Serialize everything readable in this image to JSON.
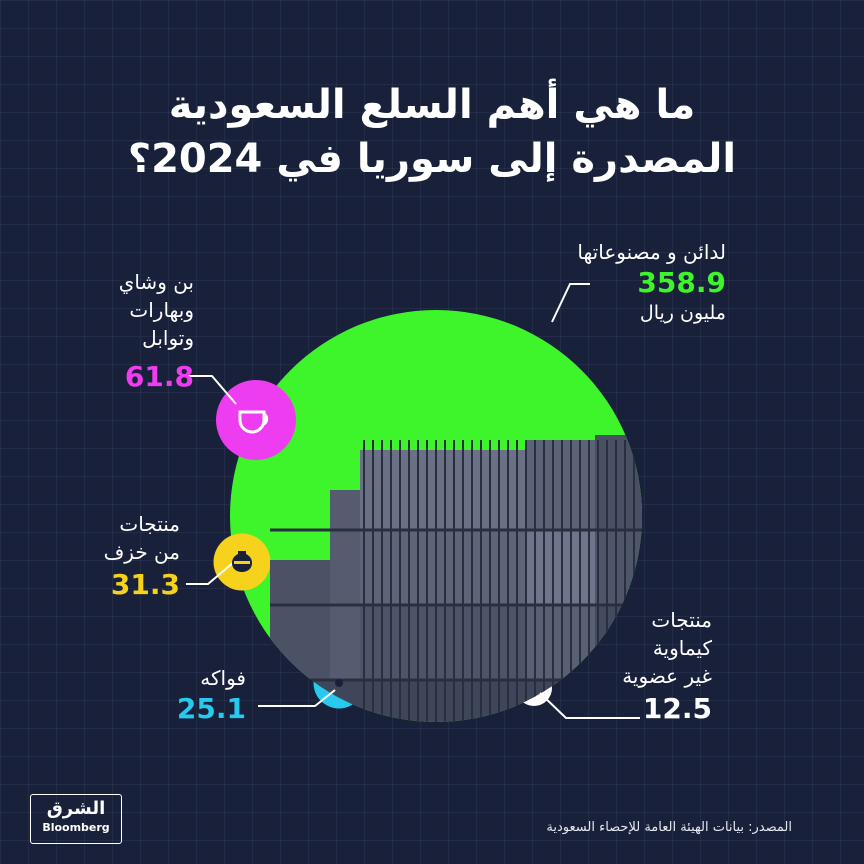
{
  "title": {
    "line1": "ما هي أهم السلع السعودية",
    "line2": "المصدرة إلى سوريا في 2024؟"
  },
  "colors": {
    "background": "#19213a",
    "green": "#3df52a",
    "magenta": "#ee3df0",
    "yellow": "#f6d21c",
    "cyan": "#27c9ee",
    "white": "#ffffff"
  },
  "chart_data": {
    "type": "pie",
    "unit": "مليون ريال",
    "slices": [
      {
        "label": "لدائن و مصنوعاتها",
        "value": 358.9,
        "color": "#3df52a",
        "icon": "none"
      },
      {
        "label_lines": [
          "بن وشاي",
          "وبهارات",
          "وتوابل"
        ],
        "value": 61.8,
        "color": "#ee3df0",
        "icon": "cup-icon"
      },
      {
        "label_lines": [
          "منتجات",
          "من خزف"
        ],
        "value": 31.3,
        "color": "#f6d21c",
        "icon": "vase-icon"
      },
      {
        "label": "فواكه",
        "value": 25.1,
        "color": "#27c9ee",
        "icon": "fruit-icon"
      },
      {
        "label_lines": [
          "منتجات",
          "كيماوية",
          "غير عضوية"
        ],
        "value": 12.5,
        "color": "#ffffff",
        "icon": "dot-icon"
      }
    ]
  },
  "labels": {
    "plastics": {
      "name": "لدائن و مصنوعاتها",
      "value": "358.9",
      "unit": "مليون ريال"
    },
    "coffee": {
      "line1": "بن وشاي",
      "line2": "وبهارات",
      "line3": "وتوابل",
      "value": "61.8"
    },
    "ceramic": {
      "line1": "منتجات",
      "line2": "من خزف",
      "value": "31.3"
    },
    "fruits": {
      "line1": "فواكه",
      "value": "25.1"
    },
    "chemicals": {
      "line1": "منتجات",
      "line2": "كيماوية",
      "line3": "غير عضوية",
      "value": "12.5"
    }
  },
  "source": "المصدر: بيانات الهيئة العامة للإحصاء السعودية",
  "logo": {
    "arabic": "الشرق",
    "english": "Bloomberg"
  }
}
